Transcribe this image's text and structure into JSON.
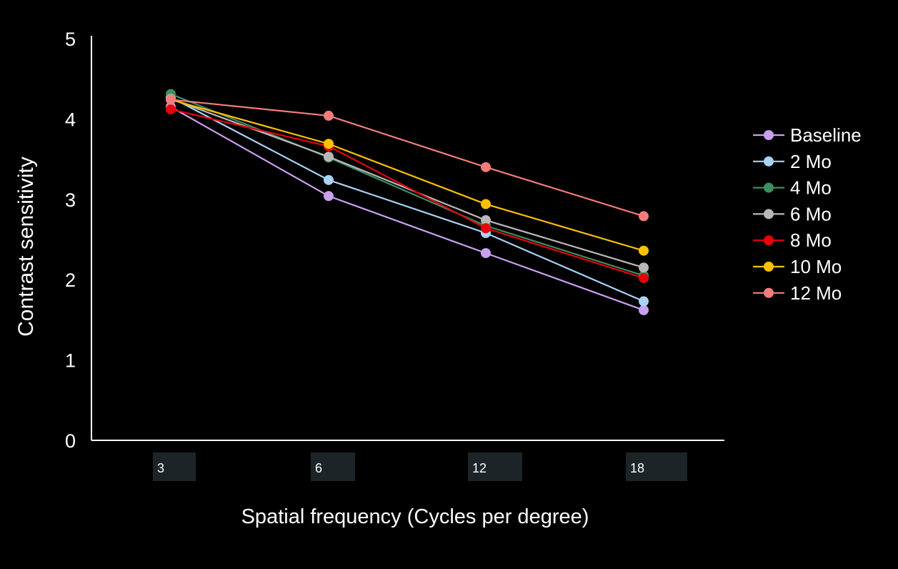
{
  "chart_data": {
    "type": "line",
    "title": "",
    "xlabel": "Spatial frequency (Cycles per degree)",
    "ylabel": "Contrast sensitivity",
    "categories": [
      "3",
      "6",
      "12",
      "18"
    ],
    "ylim": [
      0,
      5
    ],
    "yticks": [
      "0",
      "1",
      "2",
      "3",
      "4",
      "5"
    ],
    "grid": false,
    "legend_position": "right",
    "series": [
      {
        "name": "Baseline",
        "color": "#c9a0f0",
        "values": [
          4.15,
          3.04,
          2.33,
          1.62
        ]
      },
      {
        "name": "2 Mo",
        "color": "#a9d2f5",
        "values": [
          4.27,
          3.24,
          2.58,
          1.73
        ]
      },
      {
        "name": "4 Mo",
        "color": "#3e8e63",
        "values": [
          4.31,
          3.52,
          2.67,
          2.05
        ]
      },
      {
        "name": "6 Mo",
        "color": "#b8b8b8",
        "values": [
          4.25,
          3.53,
          2.74,
          2.15
        ]
      },
      {
        "name": "8 Mo",
        "color": "#e8000b",
        "values": [
          4.12,
          3.66,
          2.64,
          2.02
        ]
      },
      {
        "name": "10 Mo",
        "color": "#ffc000",
        "values": [
          4.24,
          3.69,
          2.94,
          2.36
        ]
      },
      {
        "name": "12 Mo",
        "color": "#f47c7c",
        "values": [
          4.24,
          4.04,
          3.4,
          2.79
        ]
      }
    ]
  }
}
